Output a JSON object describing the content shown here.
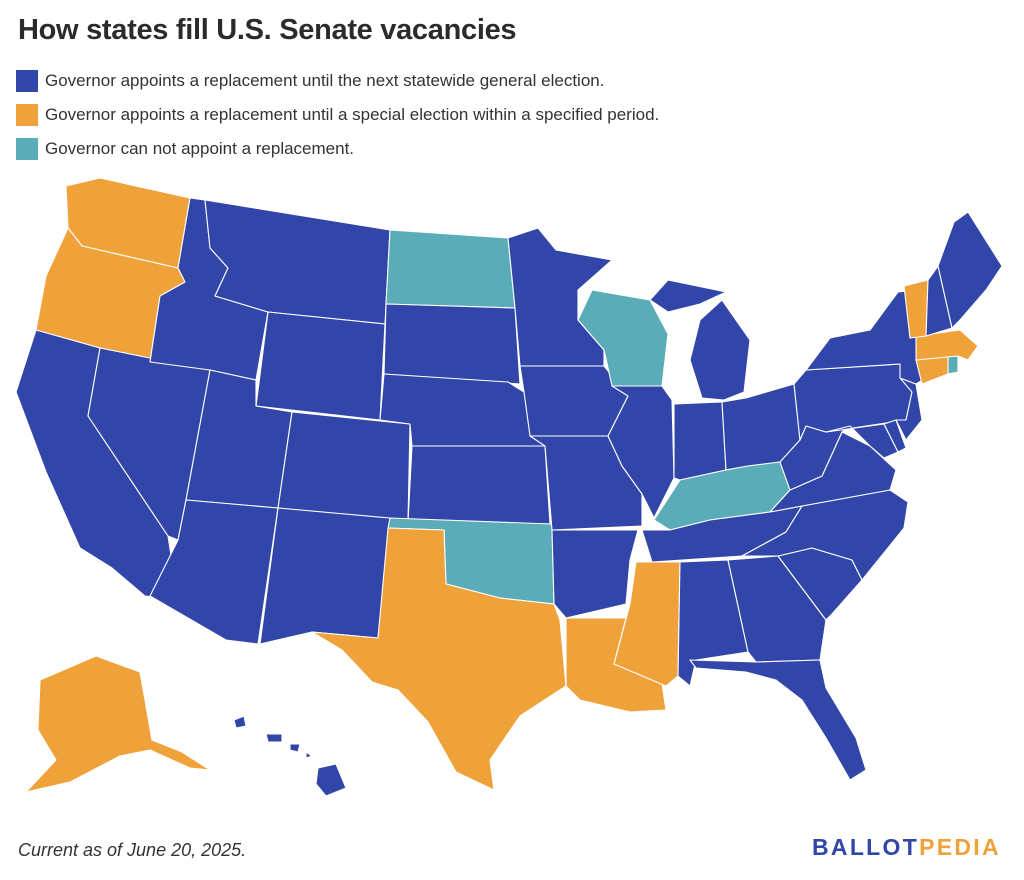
{
  "title": "How states fill U.S. Senate vacancies",
  "legend": [
    {
      "key": "general",
      "color": "#3146a8",
      "label": "Governor appoints a replacement until the next statewide general election."
    },
    {
      "key": "special",
      "color": "#f0a23a",
      "label": "Governor appoints a replacement until a special election within a specified period."
    },
    {
      "key": "none",
      "color": "#5aadb8",
      "label": "Governor can not appoint a replacement."
    }
  ],
  "states": {
    "WA": "special",
    "OR": "special",
    "CA": "general",
    "NV": "general",
    "ID": "general",
    "MT": "general",
    "WY": "general",
    "UT": "general",
    "AZ": "general",
    "CO": "general",
    "NM": "general",
    "ND": "none",
    "SD": "general",
    "NE": "general",
    "KS": "general",
    "OK": "none",
    "TX": "special",
    "MN": "general",
    "IA": "general",
    "MO": "general",
    "AR": "general",
    "LA": "special",
    "WI": "none",
    "IL": "general",
    "MI": "general",
    "IN": "general",
    "OH": "general",
    "KY": "none",
    "TN": "general",
    "MS": "special",
    "AL": "general",
    "GA": "general",
    "FL": "general",
    "SC": "general",
    "NC": "general",
    "VA": "general",
    "WV": "general",
    "MD": "general",
    "DE": "general",
    "PA": "general",
    "NJ": "general",
    "NY": "general",
    "CT": "special",
    "RI": "none",
    "MA": "special",
    "VT": "special",
    "NH": "general",
    "ME": "general",
    "AK": "special",
    "HI": "general"
  },
  "footnote": "Current as of June 20, 2025.",
  "brand": {
    "part1": "BALLOT",
    "part2": "PEDIA",
    "color1": "#3146a8",
    "color2": "#f0a23a"
  }
}
